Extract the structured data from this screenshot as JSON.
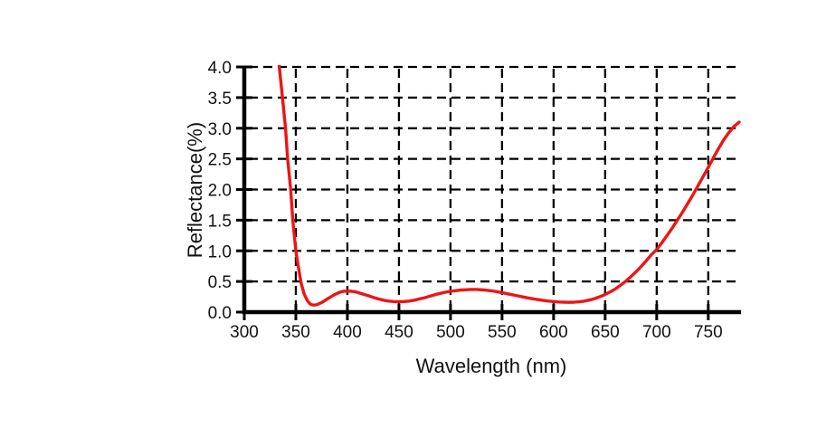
{
  "chart_data": {
    "type": "line",
    "title": "",
    "xlabel": "Wavelength (nm)",
    "ylabel": "Reflectance(%)",
    "xlim": [
      300,
      780
    ],
    "ylim": [
      0,
      4.0
    ],
    "xticks": [
      300,
      350,
      400,
      450,
      500,
      550,
      600,
      650,
      700,
      750
    ],
    "yticks": [
      {
        "value": 0.0,
        "label": "0.0"
      },
      {
        "value": 0.5,
        "label": "0.5"
      },
      {
        "value": 1.0,
        "label": "1.0"
      },
      {
        "value": 1.5,
        "label": "1.5"
      },
      {
        "value": 2.0,
        "label": "2.0"
      },
      {
        "value": 2.5,
        "label": "2.5"
      },
      {
        "value": 3.0,
        "label": "3.0"
      },
      {
        "value": 3.5,
        "label": "3.5"
      },
      {
        "value": 4.0,
        "label": "4.0"
      }
    ],
    "grid": "dashed",
    "legend": "none",
    "colors": {
      "curve": "#ed1515",
      "axis": "#000000",
      "grid": "#000000",
      "background": "#ffffff",
      "text": "#111111"
    },
    "series": [
      {
        "name": "Reflectance",
        "x": [
          331,
          334,
          337,
          340,
          342,
          345,
          347,
          350,
          352,
          355,
          358,
          361,
          364,
          367,
          370,
          373,
          376,
          380,
          384,
          388,
          392,
          396,
          400,
          404,
          408,
          412,
          416,
          420,
          425,
          430,
          435,
          440,
          445,
          450,
          455,
          460,
          465,
          470,
          475,
          480,
          485,
          490,
          495,
          500,
          505,
          510,
          515,
          520,
          525,
          530,
          535,
          540,
          545,
          550,
          555,
          560,
          565,
          570,
          575,
          580,
          585,
          590,
          595,
          600,
          605,
          610,
          615,
          620,
          625,
          630,
          635,
          640,
          645,
          650,
          655,
          660,
          665,
          670,
          675,
          680,
          685,
          690,
          695,
          700,
          705,
          710,
          715,
          720,
          725,
          730,
          735,
          740,
          745,
          750,
          755,
          760,
          765,
          770,
          775,
          780
        ],
        "y": [
          4.45,
          4.0,
          3.5,
          3.0,
          2.5,
          2.0,
          1.5,
          1.0,
          0.78,
          0.48,
          0.3,
          0.19,
          0.13,
          0.115,
          0.12,
          0.14,
          0.165,
          0.21,
          0.25,
          0.29,
          0.32,
          0.34,
          0.345,
          0.34,
          0.33,
          0.31,
          0.29,
          0.27,
          0.24,
          0.215,
          0.195,
          0.18,
          0.172,
          0.17,
          0.172,
          0.18,
          0.195,
          0.215,
          0.235,
          0.26,
          0.285,
          0.305,
          0.325,
          0.34,
          0.35,
          0.36,
          0.365,
          0.37,
          0.37,
          0.365,
          0.357,
          0.347,
          0.333,
          0.318,
          0.3,
          0.283,
          0.265,
          0.248,
          0.232,
          0.217,
          0.203,
          0.19,
          0.18,
          0.172,
          0.166,
          0.162,
          0.16,
          0.162,
          0.168,
          0.18,
          0.198,
          0.222,
          0.252,
          0.29,
          0.33,
          0.38,
          0.44,
          0.505,
          0.578,
          0.658,
          0.745,
          0.84,
          0.94,
          1.02,
          1.13,
          1.25,
          1.37,
          1.5,
          1.63,
          1.77,
          1.91,
          2.06,
          2.21,
          2.36,
          2.52,
          2.67,
          2.81,
          2.93,
          3.03,
          3.1
        ]
      }
    ]
  }
}
